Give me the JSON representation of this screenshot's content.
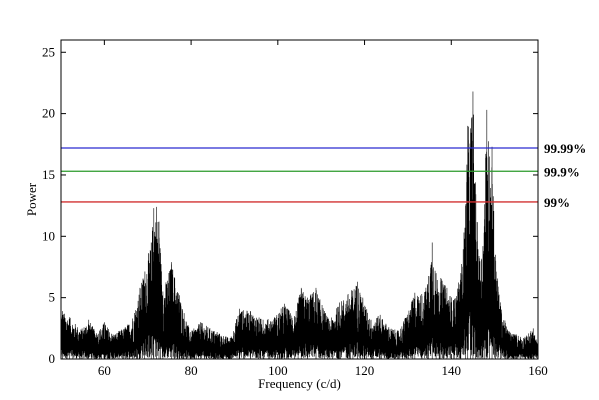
{
  "chart_data": {
    "type": "line",
    "xlabel": "Frequency (c/d)",
    "ylabel": "Power",
    "xlim": [
      50,
      160
    ],
    "ylim": [
      0,
      26
    ],
    "xticks": [
      60,
      80,
      100,
      120,
      140,
      160
    ],
    "yticks": [
      0,
      5,
      10,
      15,
      20,
      25
    ],
    "grid": false,
    "series": [
      {
        "color": "#000000",
        "peaks": [
          {
            "x": 50.3,
            "y": 3.9
          },
          {
            "x": 52.0,
            "y": 3.4
          },
          {
            "x": 54.6,
            "y": 2.4
          },
          {
            "x": 56.4,
            "y": 3.2
          },
          {
            "x": 58.2,
            "y": 2.1
          },
          {
            "x": 60.0,
            "y": 3.0
          },
          {
            "x": 62.0,
            "y": 2.0
          },
          {
            "x": 64.8,
            "y": 2.6
          },
          {
            "x": 66.5,
            "y": 3.3
          },
          {
            "x": 68.2,
            "y": 5.8
          },
          {
            "x": 70.8,
            "y": 9.5
          },
          {
            "x": 71.4,
            "y": 12.3
          },
          {
            "x": 72.0,
            "y": 12.4
          },
          {
            "x": 72.6,
            "y": 11.2
          },
          {
            "x": 73.5,
            "y": 5.5
          },
          {
            "x": 75.5,
            "y": 7.9
          },
          {
            "x": 77.3,
            "y": 5.2
          },
          {
            "x": 79.8,
            "y": 2.2
          },
          {
            "x": 82.2,
            "y": 3.0
          },
          {
            "x": 86.0,
            "y": 2.2
          },
          {
            "x": 89.0,
            "y": 1.7
          },
          {
            "x": 91.2,
            "y": 4.1
          },
          {
            "x": 93.7,
            "y": 3.9
          },
          {
            "x": 96.6,
            "y": 3.2
          },
          {
            "x": 99.2,
            "y": 3.4
          },
          {
            "x": 101.5,
            "y": 4.5
          },
          {
            "x": 103.8,
            "y": 3.5
          },
          {
            "x": 105.4,
            "y": 5.8
          },
          {
            "x": 106.8,
            "y": 5.0
          },
          {
            "x": 108.8,
            "y": 5.8
          },
          {
            "x": 110.2,
            "y": 4.4
          },
          {
            "x": 112.0,
            "y": 3.1
          },
          {
            "x": 114.2,
            "y": 4.6
          },
          {
            "x": 116.2,
            "y": 5.3
          },
          {
            "x": 118.4,
            "y": 6.3
          },
          {
            "x": 119.6,
            "y": 5.0
          },
          {
            "x": 121.5,
            "y": 3.2
          },
          {
            "x": 123.6,
            "y": 3.6
          },
          {
            "x": 125.6,
            "y": 2.6
          },
          {
            "x": 127.8,
            "y": 2.3
          },
          {
            "x": 129.3,
            "y": 3.3
          },
          {
            "x": 131.6,
            "y": 5.4
          },
          {
            "x": 133.2,
            "y": 5.3
          },
          {
            "x": 134.5,
            "y": 6.1
          },
          {
            "x": 135.6,
            "y": 9.5
          },
          {
            "x": 136.5,
            "y": 7.0
          },
          {
            "x": 137.6,
            "y": 6.6
          },
          {
            "x": 139.0,
            "y": 5.8
          },
          {
            "x": 140.6,
            "y": 4.8
          },
          {
            "x": 142.2,
            "y": 7.0
          },
          {
            "x": 143.3,
            "y": 12.5
          },
          {
            "x": 143.8,
            "y": 19.0
          },
          {
            "x": 144.4,
            "y": 18.8
          },
          {
            "x": 145.0,
            "y": 21.8
          },
          {
            "x": 145.6,
            "y": 14.4
          },
          {
            "x": 146.4,
            "y": 8.4
          },
          {
            "x": 147.3,
            "y": 9.2
          },
          {
            "x": 148.2,
            "y": 20.3
          },
          {
            "x": 148.8,
            "y": 16.5
          },
          {
            "x": 149.4,
            "y": 17.3
          },
          {
            "x": 150.2,
            "y": 8.5
          },
          {
            "x": 151.4,
            "y": 4.3
          },
          {
            "x": 153.0,
            "y": 2.4
          },
          {
            "x": 155.0,
            "y": 2.0
          },
          {
            "x": 157.0,
            "y": 1.8
          },
          {
            "x": 158.9,
            "y": 2.5
          },
          {
            "x": 159.9,
            "y": 1.2
          }
        ]
      }
    ],
    "thresholds": [
      {
        "label": "99.99%",
        "y": 17.2,
        "color": "#2b2bd0"
      },
      {
        "label": "99.9%",
        "y": 15.3,
        "color": "#2a9a2a"
      },
      {
        "label": "99%",
        "y": 12.8,
        "color": "#d23030"
      }
    ]
  }
}
